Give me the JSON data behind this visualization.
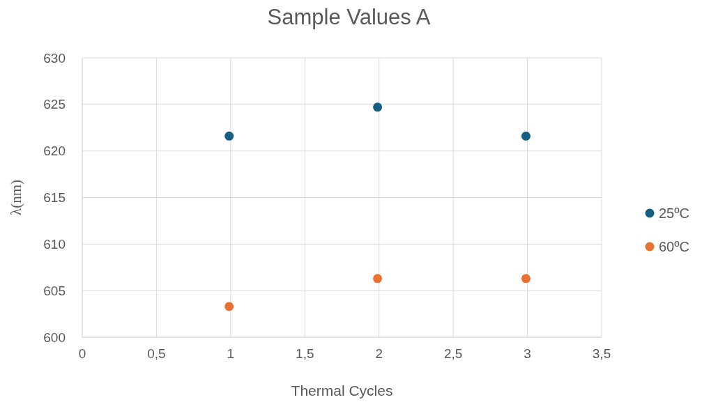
{
  "chart_data": {
    "type": "scatter",
    "title": "Sample Values A",
    "xlabel": "Thermal Cycles",
    "ylabel": "λ(nm)",
    "x": [
      0.99,
      1.99,
      2.99
    ],
    "series": [
      {
        "name": "25ºC",
        "color": "#156082",
        "values": [
          621.6,
          624.7,
          621.6
        ]
      },
      {
        "name": "60ºC",
        "color": "#e97132",
        "values": [
          603.3,
          606.3,
          606.3
        ]
      }
    ],
    "xlim": [
      0,
      3.5
    ],
    "xticks": [
      0,
      {
        "value": 0.5,
        "label": "0,5"
      },
      1,
      {
        "value": 1.5,
        "label": "1,5"
      },
      2,
      {
        "value": 2.5,
        "label": "2,5"
      },
      3,
      {
        "value": 3.5,
        "label": "3,5"
      }
    ],
    "ylim": [
      600,
      630
    ],
    "yticks": [
      600,
      605,
      610,
      615,
      620,
      625,
      630
    ],
    "grid": true,
    "legend": "right",
    "marker": "circle"
  }
}
